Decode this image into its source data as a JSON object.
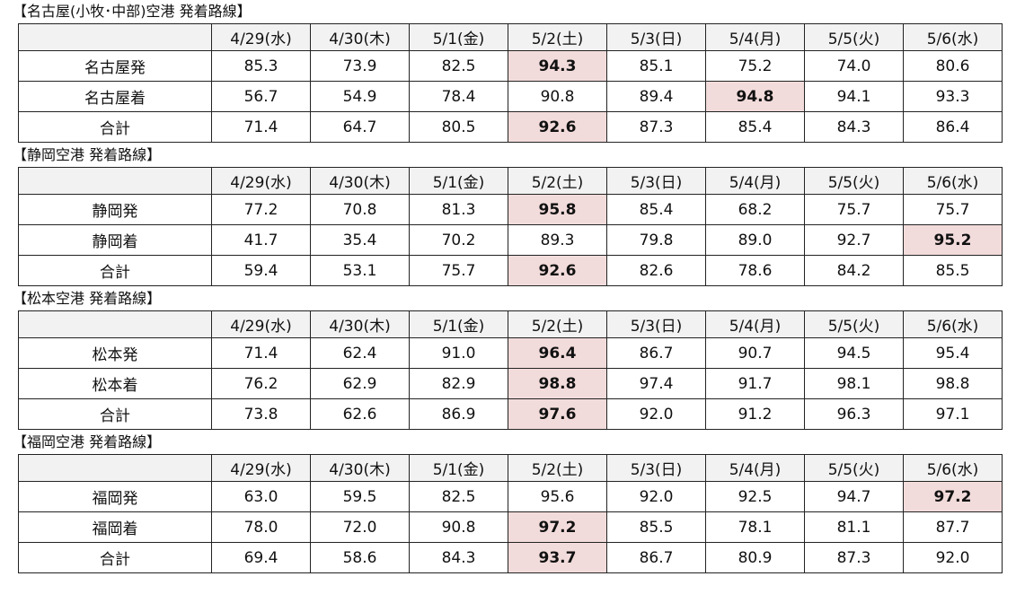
{
  "sections": [
    {
      "title": "【名古屋(小牧･中部)空港 発着路線】",
      "header": [
        "",
        "4/29(水)",
        "4/30(木)",
        "5/1(金)",
        "5/2(土)",
        "5/3(日)",
        "5/4(月)",
        "5/5(火)",
        "5/6(水)"
      ],
      "rows": [
        [
          "名古屋発",
          "85.3",
          "73.9",
          "82.5",
          "94.3",
          "85.1",
          "75.2",
          "74.0",
          "80.6"
        ],
        [
          "名古屋着",
          "56.7",
          "54.9",
          "78.4",
          "90.8",
          "89.4",
          "94.8",
          "94.1",
          "93.3"
        ],
        [
          "合計",
          "71.4",
          "64.7",
          "80.5",
          "92.6",
          "87.3",
          "85.4",
          "84.3",
          "86.4"
        ]
      ],
      "highlighted_cells": [
        [
          0,
          4
        ],
        [
          1,
          6
        ],
        [
          2,
          4
        ]
      ]
    },
    {
      "title": "【静岡空港 発着路線】",
      "header": [
        "",
        "4/29(水)",
        "4/30(木)",
        "5/1(金)",
        "5/2(土)",
        "5/3(日)",
        "5/4(月)",
        "5/5(火)",
        "5/6(水)"
      ],
      "rows": [
        [
          "静岡発",
          "77.2",
          "70.8",
          "81.3",
          "95.8",
          "85.4",
          "68.2",
          "75.7",
          "75.7"
        ],
        [
          "静岡着",
          "41.7",
          "35.4",
          "70.2",
          "89.3",
          "79.8",
          "89.0",
          "92.7",
          "95.2"
        ],
        [
          "合計",
          "59.4",
          "53.1",
          "75.7",
          "92.6",
          "82.6",
          "78.6",
          "84.2",
          "85.5"
        ]
      ],
      "highlighted_cells": [
        [
          0,
          4
        ],
        [
          1,
          8
        ],
        [
          2,
          4
        ]
      ]
    },
    {
      "title": "【松本空港 発着路線】",
      "header": [
        "",
        "4/29(水)",
        "4/30(木)",
        "5/1(金)",
        "5/2(土)",
        "5/3(日)",
        "5/4(月)",
        "5/5(火)",
        "5/6(水)"
      ],
      "rows": [
        [
          "松本発",
          "71.4",
          "62.4",
          "91.0",
          "96.4",
          "86.7",
          "90.7",
          "94.5",
          "95.4"
        ],
        [
          "松本着",
          "76.2",
          "62.9",
          "82.9",
          "98.8",
          "97.4",
          "91.7",
          "98.1",
          "98.8"
        ],
        [
          "合計",
          "73.8",
          "62.6",
          "86.9",
          "97.6",
          "92.0",
          "91.2",
          "96.3",
          "97.1"
        ]
      ],
      "highlighted_cells": [
        [
          0,
          4
        ],
        [
          1,
          4
        ],
        [
          2,
          4
        ]
      ]
    },
    {
      "title": "【福岡空港 発着路線】",
      "header": [
        "",
        "4/29(水)",
        "4/30(木)",
        "5/1(金)",
        "5/2(土)",
        "5/3(日)",
        "5/4(月)",
        "5/5(火)",
        "5/6(水)"
      ],
      "rows": [
        [
          "福岡発",
          "63.0",
          "59.5",
          "82.5",
          "95.6",
          "92.0",
          "92.5",
          "94.7",
          "97.2"
        ],
        [
          "福岡着",
          "78.0",
          "72.0",
          "90.8",
          "97.2",
          "85.5",
          "78.1",
          "81.1",
          "87.7"
        ],
        [
          "合計",
          "69.4",
          "58.6",
          "84.3",
          "93.7",
          "86.7",
          "80.9",
          "87.3",
          "92.0"
        ]
      ],
      "highlighted_cells": [
        [
          0,
          8
        ],
        [
          1,
          4
        ],
        [
          2,
          4
        ]
      ]
    }
  ]
}
